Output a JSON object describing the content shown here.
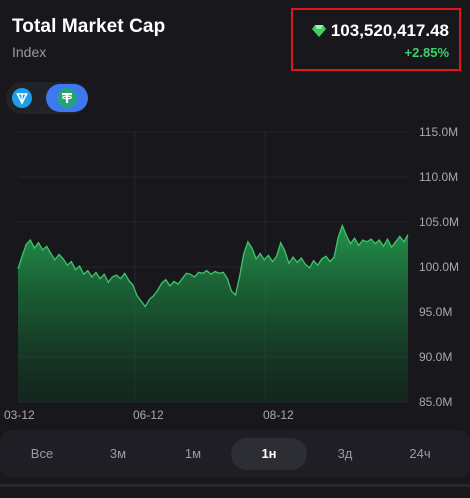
{
  "header": {
    "title": "Total Market Cap",
    "subtitle": "Index"
  },
  "price": {
    "value": "103,520,417.48",
    "change": "+2.85%",
    "icon": "diamond-icon"
  },
  "tokens": [
    {
      "name": "ton-icon",
      "color": "#1c9ee8"
    },
    {
      "name": "usdt-icon",
      "color": "#26a17b"
    }
  ],
  "colors": {
    "accent": "#3d78f0",
    "positive": "#3fd06b",
    "area": "#1f8a46",
    "highlight": "#e0161c"
  },
  "chart_data": {
    "type": "area",
    "x_ticks": [
      "03-12",
      "06-12",
      "08-12"
    ],
    "y_ticks": [
      "115.0M",
      "110.0M",
      "105.0M",
      "100.0M",
      "95.0M",
      "90.0M",
      "85.0M"
    ],
    "ylim": [
      85,
      115
    ],
    "y": [
      99.8,
      101.2,
      102.5,
      103.0,
      102.1,
      102.7,
      101.9,
      102.3,
      101.5,
      100.8,
      101.4,
      100.9,
      100.2,
      100.6,
      99.7,
      100.1,
      99.2,
      99.6,
      98.9,
      99.4,
      98.7,
      99.2,
      98.3,
      98.9,
      99.1,
      98.7,
      99.3,
      98.5,
      98.0,
      96.8,
      96.2,
      95.6,
      96.4,
      96.8,
      97.4,
      98.2,
      98.6,
      97.9,
      98.4,
      98.1,
      98.7,
      99.3,
      99.2,
      98.9,
      99.4,
      99.3,
      99.6,
      99.2,
      99.5,
      99.3,
      99.4,
      98.7,
      97.3,
      96.9,
      99.0,
      101.5,
      102.8,
      102.1,
      100.9,
      101.5,
      100.8,
      101.3,
      100.6,
      101.2,
      102.7,
      101.8,
      100.4,
      101.1,
      100.5,
      101.0,
      100.3,
      99.9,
      100.7,
      100.2,
      100.9,
      101.2,
      100.6,
      101.1,
      103.3,
      104.6,
      103.5,
      102.6,
      103.2,
      102.4,
      103.0,
      102.8,
      103.1,
      102.6,
      103.0,
      102.3,
      103.1,
      102.2,
      102.8,
      103.4,
      102.8,
      103.6
    ],
    "xlabel": "",
    "ylabel": ""
  },
  "tabs": [
    {
      "label": "Все",
      "active": false
    },
    {
      "label": "3м",
      "active": false
    },
    {
      "label": "1м",
      "active": false
    },
    {
      "label": "1н",
      "active": true
    },
    {
      "label": "3д",
      "active": false
    },
    {
      "label": "24ч",
      "active": false
    }
  ]
}
